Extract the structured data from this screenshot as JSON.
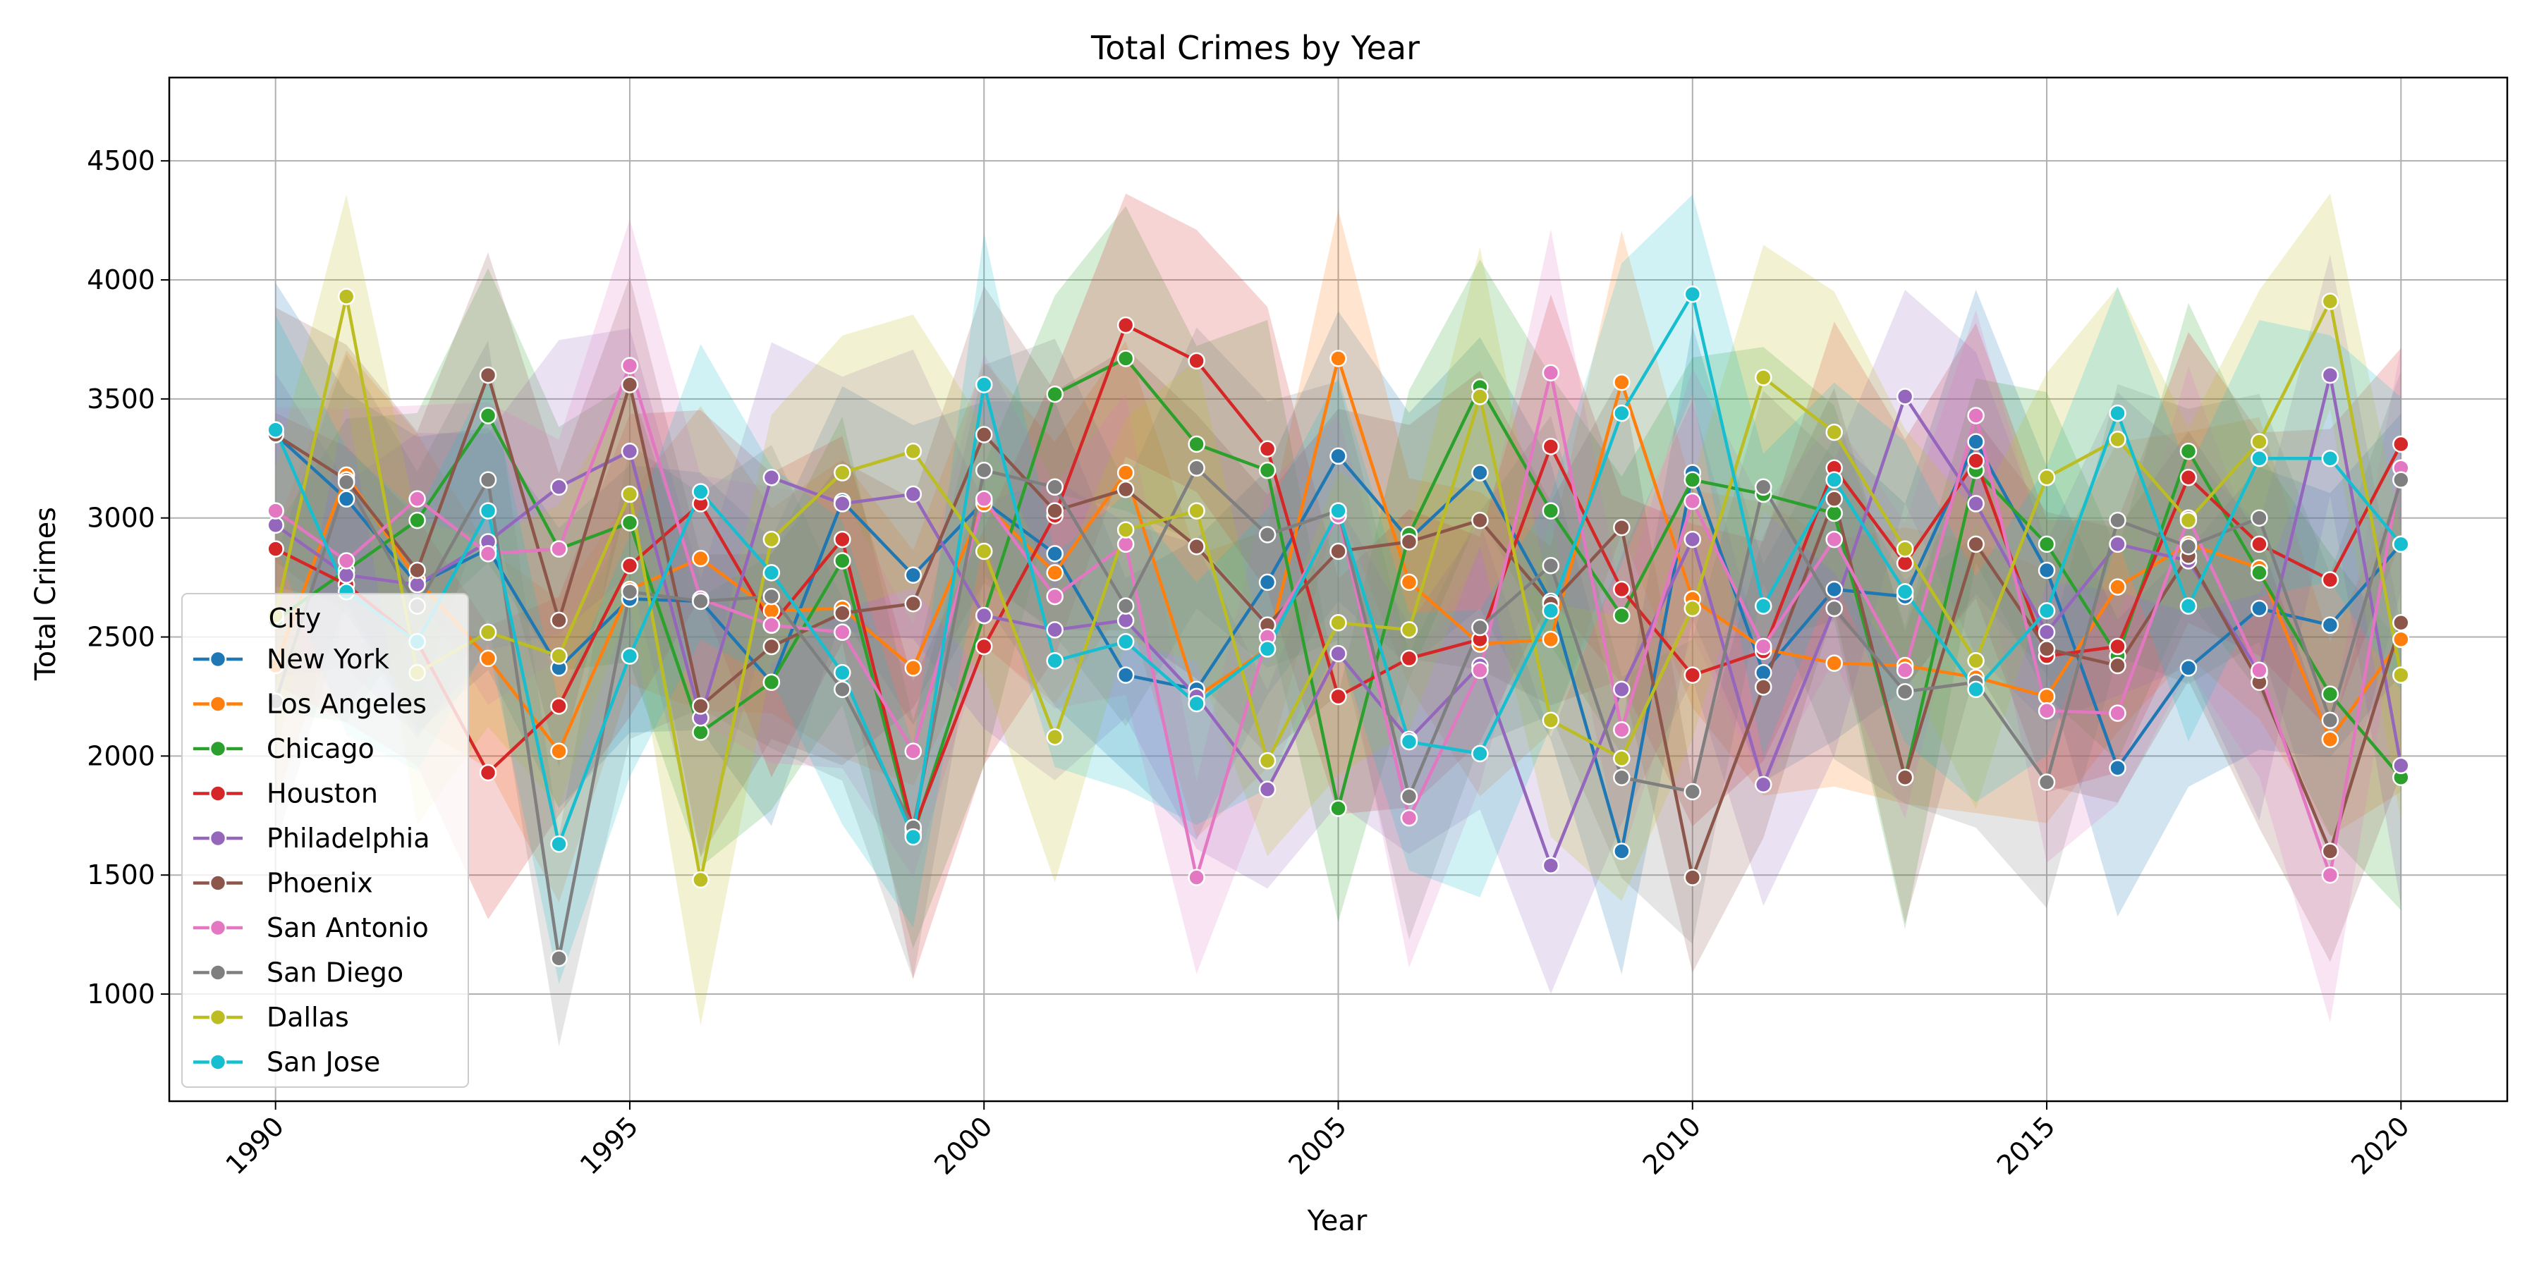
{
  "chart_data": {
    "type": "line",
    "title": "Total Crimes by Year",
    "xlabel": "Year",
    "ylabel": "Total Crimes",
    "xlim": [
      1988.5,
      2021.5
    ],
    "ylim": [
      550,
      4850
    ],
    "xticks": [
      1990,
      1995,
      2000,
      2005,
      2010,
      2015,
      2020
    ],
    "yticks": [
      1000,
      1500,
      2000,
      2500,
      3000,
      3500,
      4000,
      4500
    ],
    "grid": true,
    "legend": {
      "title": "City",
      "placement": "bottom-left"
    },
    "x": [
      1990,
      1991,
      1992,
      1993,
      1994,
      1995,
      1996,
      1997,
      1998,
      1999,
      2000,
      2001,
      2002,
      2003,
      2004,
      2005,
      2006,
      2007,
      2008,
      2009,
      2010,
      2011,
      2012,
      2013,
      2014,
      2015,
      2016,
      2017,
      2018,
      2019,
      2020
    ],
    "series": [
      {
        "name": "New York",
        "color": "#1f77b4",
        "values": [
          3350,
          3080,
          2720,
          2870,
          2370,
          2660,
          2650,
          2310,
          3070,
          2760,
          3070,
          2850,
          2340,
          2280,
          2730,
          3260,
          2910,
          3190,
          2650,
          1600,
          3190,
          2350,
          2700,
          2670,
          3320,
          2780,
          1950,
          2370,
          2620,
          2550,
          2890
        ]
      },
      {
        "name": "Los Angeles",
        "color": "#ff7f0e",
        "values": [
          2380,
          3180,
          2740,
          2410,
          2020,
          2700,
          2830,
          2610,
          2620,
          2370,
          3060,
          2770,
          3190,
          2250,
          2450,
          3670,
          2730,
          2470,
          2490,
          3570,
          2660,
          2450,
          2390,
          2380,
          2330,
          2250,
          2710,
          2890,
          2790,
          2070,
          2490
        ]
      },
      {
        "name": "Chicago",
        "color": "#2ca02c",
        "values": [
          2570,
          2780,
          2990,
          3430,
          2870,
          2980,
          2100,
          2310,
          2820,
          1670,
          2590,
          3520,
          3670,
          3310,
          3200,
          1780,
          2930,
          3550,
          3030,
          2590,
          3160,
          3100,
          3020,
          1910,
          3200,
          2890,
          2420,
          3280,
          2770,
          2260,
          1910
        ]
      },
      {
        "name": "Houston",
        "color": "#d62728",
        "values": [
          2870,
          2720,
          2480,
          1930,
          2210,
          2800,
          3060,
          2550,
          2910,
          1690,
          2460,
          3010,
          3810,
          3660,
          3290,
          2250,
          2410,
          2490,
          3300,
          2700,
          2340,
          2440,
          3210,
          2810,
          3240,
          2420,
          2460,
          3170,
          2890,
          2740,
          3310
        ]
      },
      {
        "name": "Philadelphia",
        "color": "#9467bd",
        "values": [
          2970,
          2760,
          2720,
          2900,
          3130,
          3280,
          2160,
          3170,
          3060,
          3100,
          2590,
          2530,
          2570,
          2250,
          1860,
          2430,
          2070,
          2380,
          1540,
          2280,
          2910,
          1880,
          2620,
          3510,
          3060,
          2520,
          2890,
          2820,
          2350,
          3600,
          1960
        ]
      },
      {
        "name": "Phoenix",
        "color": "#8c564b",
        "values": [
          3350,
          3160,
          2780,
          3600,
          2570,
          3560,
          2210,
          2460,
          2600,
          2640,
          3350,
          3030,
          3120,
          2880,
          2550,
          2860,
          2900,
          2990,
          2640,
          2960,
          1490,
          2290,
          3080,
          1910,
          2890,
          2450,
          2380,
          2840,
          2310,
          1600,
          2560
        ]
      },
      {
        "name": "San Antonio",
        "color": "#e377c2",
        "values": [
          3030,
          2820,
          3080,
          2850,
          2870,
          3640,
          2660,
          2550,
          2520,
          2020,
          3080,
          2670,
          2890,
          1490,
          2500,
          3010,
          1740,
          2360,
          3610,
          2110,
          3070,
          2460,
          2910,
          2360,
          3430,
          2190,
          2180,
          3000,
          2360,
          1500,
          3210
        ]
      },
      {
        "name": "San Diego",
        "color": "#7f7f7f",
        "values": [
          2230,
          3150,
          2630,
          3160,
          1150,
          2690,
          2650,
          2670,
          2280,
          1700,
          3200,
          3130,
          2630,
          3210,
          2930,
          3030,
          1830,
          2540,
          2800,
          1910,
          1850,
          3130,
          2620,
          2270,
          2310,
          1890,
          2990,
          2880,
          3000,
          2150,
          3160
        ]
      },
      {
        "name": "Dallas",
        "color": "#bcbd22",
        "values": [
          2590,
          3930,
          2350,
          2520,
          2420,
          3100,
          1480,
          2910,
          3190,
          3280,
          2860,
          2080,
          2950,
          3030,
          1980,
          2560,
          2530,
          3510,
          2150,
          1990,
          2620,
          3590,
          3360,
          2870,
          2400,
          3170,
          3330,
          2990,
          3320,
          3910,
          2340
        ]
      },
      {
        "name": "San Jose",
        "color": "#17becf",
        "values": [
          3370,
          2690,
          2480,
          3030,
          1630,
          2420,
          3110,
          2770,
          2350,
          1660,
          3560,
          2400,
          2480,
          2220,
          2450,
          3030,
          2060,
          2010,
          2610,
          3440,
          3940,
          2630,
          3160,
          2690,
          2280,
          2610,
          3440,
          2630,
          3250,
          3250,
          2890
        ]
      }
    ]
  }
}
